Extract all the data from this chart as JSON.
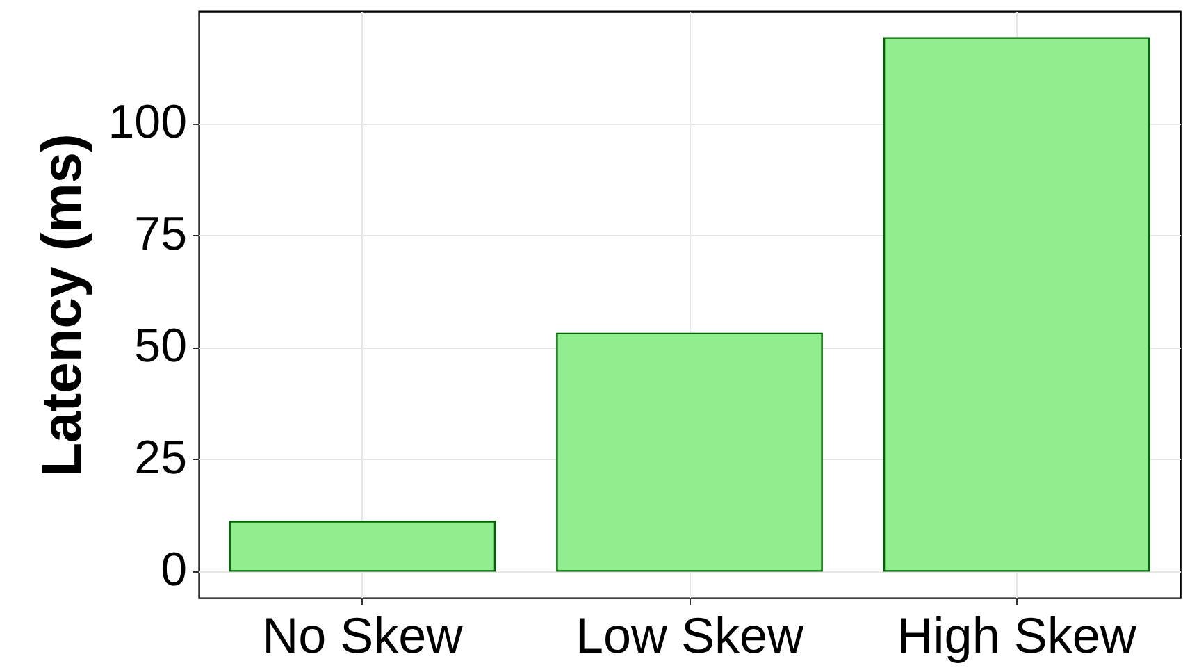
{
  "chart_data": {
    "type": "bar",
    "ylabel": "Latency (ms)",
    "categories": [
      "No Skew",
      "Low Skew",
      "High Skew"
    ],
    "values": [
      11,
      53,
      119
    ],
    "color": "#90ee90",
    "ylim": [
      -6,
      125
    ],
    "yticks": [
      0,
      25,
      50,
      75,
      100
    ],
    "grid": true
  }
}
